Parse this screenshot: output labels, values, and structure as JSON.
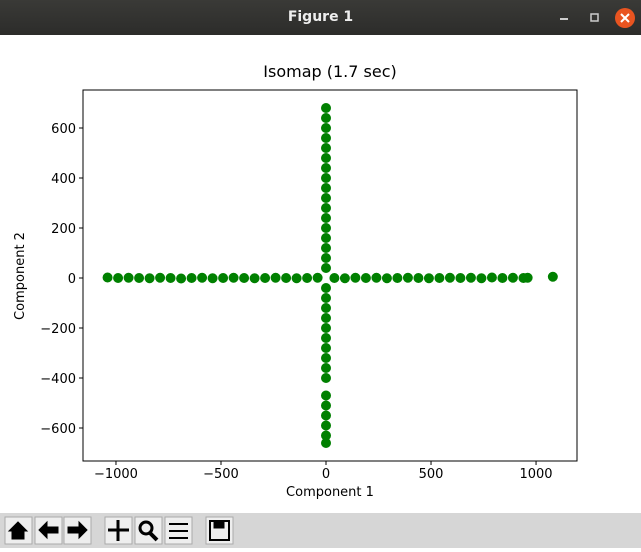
{
  "window": {
    "title": "Figure 1"
  },
  "chart_data": {
    "type": "scatter",
    "title": "Isomap (1.7 sec)",
    "xlabel": "Component 1",
    "ylabel": "Component 2",
    "color": "#008000",
    "x": [
      -1040,
      -990,
      -940,
      -890,
      -840,
      -790,
      -740,
      -690,
      -640,
      -590,
      -540,
      -490,
      -440,
      -390,
      -340,
      -290,
      -240,
      -190,
      -140,
      -90,
      -40,
      40,
      90,
      140,
      190,
      240,
      290,
      340,
      390,
      440,
      490,
      540,
      590,
      640,
      690,
      740,
      790,
      840,
      890,
      940,
      960,
      1080,
      0,
      0,
      0,
      0,
      0,
      0,
      0,
      0,
      0,
      0,
      0,
      0,
      0,
      0,
      0,
      0,
      0,
      0,
      0,
      0,
      0,
      0,
      0,
      0,
      0,
      0,
      0,
      0,
      0,
      0,
      0,
      0,
      0
    ],
    "y": [
      2,
      0,
      1,
      0,
      -1,
      1,
      0,
      -2,
      0,
      1,
      -1,
      0,
      1,
      0,
      -1,
      0,
      1,
      0,
      -1,
      0,
      1,
      0,
      -1,
      1,
      0,
      1,
      -1,
      0,
      1,
      0,
      -1,
      0,
      1,
      0,
      1,
      -1,
      2,
      0,
      1,
      0,
      1,
      5,
      680,
      640,
      600,
      560,
      520,
      480,
      440,
      400,
      360,
      320,
      280,
      240,
      200,
      160,
      120,
      80,
      40,
      -40,
      -80,
      -120,
      -160,
      -200,
      -240,
      -280,
      -320,
      -360,
      -400,
      -470,
      -510,
      -550,
      -590,
      -630,
      -660
    ],
    "xlim": [
      -1157,
      1195
    ],
    "ylim": [
      -732,
      752
    ],
    "xticks": [
      {
        "value": -1000,
        "label": "−1000"
      },
      {
        "value": -500,
        "label": "−500"
      },
      0,
      500,
      1000
    ],
    "yticks": [
      {
        "value": -600,
        "label": "−600"
      },
      {
        "value": -400,
        "label": "−400"
      },
      {
        "value": -200,
        "label": "−200"
      },
      0,
      200,
      400,
      600
    ]
  }
}
